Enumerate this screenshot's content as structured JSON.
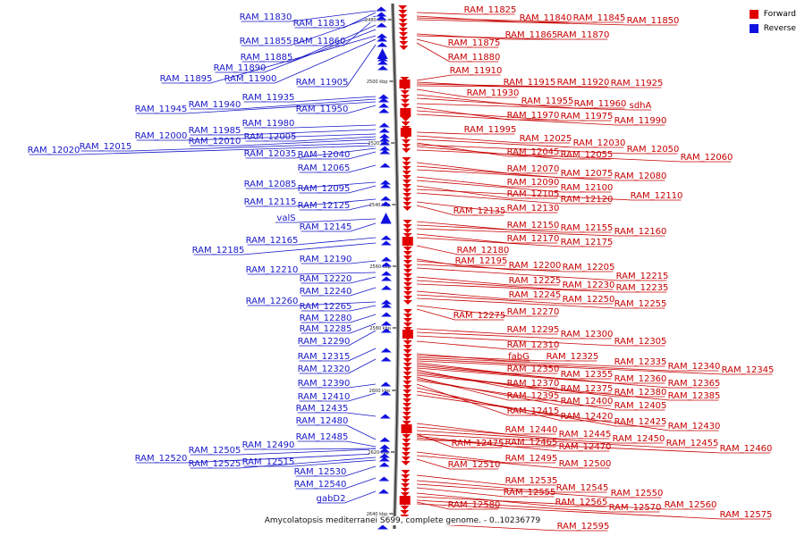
{
  "legend": {
    "forward_label": "Forward",
    "reverse_label": "Reverse",
    "forward_color": "#e00000",
    "reverse_color": "#1010e0"
  },
  "caption": "Amycolatopsis mediterranei S699, complete genome. - 0..10236779",
  "axis_ticks": [
    "2480 kbp",
    "2500 kbp",
    "2520 kbp",
    "2540 kbp",
    "2560 kbp",
    "2580 kbp",
    "2600 kbp",
    "2620 kbp",
    "2640 kbp"
  ],
  "reverse_genes": [
    "RAM_11830",
    "RAM_11835",
    "RAM_11855",
    "RAM_11860",
    "RAM_11885",
    "RAM_11890",
    "RAM_11895",
    "RAM_11900",
    "RAM_11905",
    "RAM_11935",
    "RAM_11940",
    "RAM_11945",
    "RAM_11950",
    "RAM_11980",
    "RAM_11985",
    "RAM_12000",
    "RAM_12005",
    "RAM_12010",
    "RAM_12015",
    "RAM_12020",
    "RAM_12035",
    "RAM_12040",
    "RAM_12065",
    "RAM_12085",
    "RAM_12095",
    "RAM_12115",
    "RAM_12125",
    "valS",
    "RAM_12145",
    "RAM_12165",
    "RAM_12185",
    "RAM_12190",
    "RAM_12210",
    "RAM_12220",
    "RAM_12240",
    "RAM_12260",
    "RAM_12265",
    "RAM_12280",
    "RAM_12285",
    "RAM_12290",
    "RAM_12315",
    "RAM_12320",
    "RAM_12390",
    "RAM_12410",
    "RAM_12435",
    "RAM_12480",
    "RAM_12485",
    "RAM_12490",
    "RAM_12505",
    "RAM_12520",
    "RAM_12525",
    "RAM_12515",
    "RAM_12530",
    "RAM_12540",
    "gabD2"
  ],
  "forward_genes": [
    "RAM_11825",
    "RAM_11840",
    "RAM_11845",
    "RAM_11850",
    "RAM_11865",
    "RAM_11870",
    "RAM_11875",
    "RAM_11880",
    "RAM_11910",
    "RAM_11915",
    "RAM_11920",
    "RAM_11925",
    "RAM_11930",
    "RAM_11955",
    "RAM_11960",
    "sdhA",
    "RAM_11970",
    "RAM_11975",
    "RAM_11990",
    "RAM_11995",
    "RAM_12025",
    "RAM_12030",
    "RAM_12050",
    "RAM_12045",
    "RAM_12055",
    "RAM_12060",
    "RAM_12070",
    "RAM_12075",
    "RAM_12080",
    "RAM_12090",
    "RAM_12100",
    "RAM_12105",
    "RAM_12110",
    "RAM_12120",
    "RAM_12130",
    "RAM_12135",
    "RAM_12150",
    "RAM_12155",
    "RAM_12160",
    "RAM_12170",
    "RAM_12175",
    "RAM_12180",
    "RAM_12195",
    "RAM_12200",
    "RAM_12205",
    "RAM_12215",
    "RAM_12225",
    "RAM_12230",
    "RAM_12235",
    "RAM_12245",
    "RAM_12250",
    "RAM_12255",
    "RAM_12275",
    "RAM_12270",
    "RAM_12295",
    "RAM_12300",
    "RAM_12305",
    "RAM_12310",
    "fabG",
    "RAM_12325",
    "RAM_12335",
    "RAM_12340",
    "RAM_12345",
    "RAM_12350",
    "RAM_12355",
    "RAM_12360",
    "RAM_12365",
    "RAM_12370",
    "RAM_12375",
    "RAM_12380",
    "RAM_12385",
    "RAM_12395",
    "RAM_12400",
    "RAM_12405",
    "RAM_12415",
    "RAM_12420",
    "RAM_12425",
    "RAM_12430",
    "RAM_12440",
    "RAM_12445",
    "RAM_12450",
    "RAM_12455",
    "RAM_12465",
    "RAM_12470",
    "RAM_12460",
    "RAM_12475",
    "RAM_12495",
    "RAM_12500",
    "RAM_12510",
    "RAM_12535",
    "RAM_12545",
    "RAM_12550",
    "RAM_12555",
    "RAM_12560",
    "RAM_12565",
    "RAM_12570",
    "RAM_12575",
    "RAM_12580",
    "RAM_12595"
  ]
}
